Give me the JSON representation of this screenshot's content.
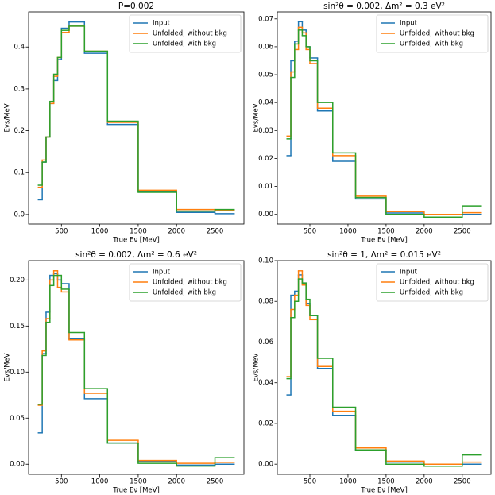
{
  "chart_data": [
    {
      "type": "histogram",
      "title": "P=0.002",
      "xlabel": "True Eν [MeV]",
      "ylabel": "Evs/MeV",
      "bins": [
        200,
        250,
        300,
        350,
        400,
        450,
        500,
        600,
        800,
        1100,
        1500,
        2000,
        2500,
        2750
      ],
      "series": [
        {
          "name": "Input",
          "color": "#1f77b4",
          "values": [
            0.035,
            0.125,
            0.185,
            0.265,
            0.32,
            0.37,
            0.445,
            0.46,
            0.385,
            0.215,
            0.055,
            0.005,
            0.002
          ]
        },
        {
          "name": "Unfolded, without bkg",
          "color": "#ff7f0e",
          "values": [
            0.065,
            0.13,
            0.185,
            0.265,
            0.33,
            0.375,
            0.435,
            0.45,
            0.39,
            0.22,
            0.058,
            0.012,
            0.01
          ]
        },
        {
          "name": "Unfolded, with bkg",
          "color": "#2ca02c",
          "values": [
            0.07,
            0.125,
            0.185,
            0.27,
            0.335,
            0.375,
            0.44,
            0.45,
            0.39,
            0.223,
            0.053,
            0.008,
            0.012
          ]
        }
      ],
      "xlim": [
        72.5,
        2877.5
      ],
      "xticks": [
        500,
        1000,
        1500,
        2000,
        2500
      ],
      "ylim": [
        -0.023,
        0.484
      ],
      "yticks": [
        {
          "value": 0,
          "label": "0.0"
        },
        {
          "value": 0.1,
          "label": "0.1"
        },
        {
          "value": 0.2,
          "label": "0.2"
        },
        {
          "value": 0.3,
          "label": "0.3"
        },
        {
          "value": 0.4,
          "label": "0.4"
        }
      ],
      "legend": "upper right"
    },
    {
      "type": "histogram",
      "title": "sin²θ = 0.002,  Δm² = 0.3 eV²",
      "xlabel": "True Eν [MeV]",
      "ylabel": "Evs/MeV",
      "bins": [
        200,
        250,
        300,
        350,
        400,
        450,
        500,
        600,
        800,
        1100,
        1500,
        2000,
        2500,
        2750
      ],
      "series": [
        {
          "name": "Input",
          "color": "#1f77b4",
          "values": [
            0.021,
            0.055,
            0.062,
            0.069,
            0.066,
            0.06,
            0.056,
            0.037,
            0.019,
            0.0055,
            0.0005,
            0.0,
            0.0
          ]
        },
        {
          "name": "Unfolded, without bkg",
          "color": "#ff7f0e",
          "values": [
            0.028,
            0.051,
            0.059,
            0.067,
            0.065,
            0.059,
            0.054,
            0.038,
            0.021,
            0.0065,
            0.001,
            0.0,
            0.0006
          ]
        },
        {
          "name": "Unfolded, with bkg",
          "color": "#2ca02c",
          "values": [
            0.027,
            0.049,
            0.061,
            0.066,
            0.064,
            0.06,
            0.055,
            0.04,
            0.022,
            0.006,
            0.0,
            -0.001,
            0.003
          ]
        }
      ],
      "xlim": [
        72.5,
        2877.5
      ],
      "xticks": [
        500,
        1000,
        1500,
        2000,
        2500
      ],
      "ylim": [
        -0.0035,
        0.0725
      ],
      "yticks": [
        {
          "value": 0,
          "label": "0.00"
        },
        {
          "value": 0.01,
          "label": "0.01"
        },
        {
          "value": 0.02,
          "label": "0.02"
        },
        {
          "value": 0.03,
          "label": "0.03"
        },
        {
          "value": 0.04,
          "label": "0.04"
        },
        {
          "value": 0.05,
          "label": "0.05"
        },
        {
          "value": 0.06,
          "label": "0.06"
        },
        {
          "value": 0.07,
          "label": "0.07"
        }
      ],
      "legend": "upper right"
    },
    {
      "type": "histogram",
      "title": "sin²θ = 0.002,  Δm² = 0.6 eV²",
      "xlabel": "True Eν [MeV]",
      "ylabel": "Evs/MeV",
      "bins": [
        200,
        250,
        300,
        350,
        400,
        450,
        500,
        600,
        800,
        1100,
        1500,
        2000,
        2500,
        2750
      ],
      "series": [
        {
          "name": "Input",
          "color": "#1f77b4",
          "values": [
            0.034,
            0.12,
            0.165,
            0.205,
            0.207,
            0.2,
            0.196,
            0.136,
            0.071,
            0.023,
            0.003,
            -0.001,
            0.0
          ]
        },
        {
          "name": "Unfolded, without bkg",
          "color": "#ff7f0e",
          "values": [
            0.064,
            0.123,
            0.158,
            0.2,
            0.21,
            0.192,
            0.187,
            0.135,
            0.077,
            0.026,
            0.004,
            0.001,
            0.002
          ]
        },
        {
          "name": "Unfolded, with bkg",
          "color": "#2ca02c",
          "values": [
            0.065,
            0.118,
            0.154,
            0.194,
            0.205,
            0.205,
            0.19,
            0.143,
            0.082,
            0.023,
            0.001,
            -0.002,
            0.007
          ]
        }
      ],
      "xlim": [
        72.5,
        2877.5
      ],
      "xticks": [
        500,
        1000,
        1500,
        2000,
        2500
      ],
      "ylim": [
        -0.011,
        0.221
      ],
      "yticks": [
        {
          "value": 0,
          "label": "0.00"
        },
        {
          "value": 0.05,
          "label": "0.05"
        },
        {
          "value": 0.1,
          "label": "0.10"
        },
        {
          "value": 0.15,
          "label": "0.15"
        },
        {
          "value": 0.2,
          "label": "0.20"
        }
      ],
      "legend": "upper right"
    },
    {
      "type": "histogram",
      "title": "sin²θ = 1,  Δm² = 0.015 eV²",
      "xlabel": "True Eν [MeV]",
      "ylabel": "Evs/MeV",
      "bins": [
        200,
        250,
        300,
        350,
        400,
        450,
        500,
        600,
        800,
        1100,
        1500,
        2000,
        2500,
        2750
      ],
      "series": [
        {
          "name": "Input",
          "color": "#1f77b4",
          "values": [
            0.034,
            0.083,
            0.085,
            0.093,
            0.089,
            0.079,
            0.073,
            0.047,
            0.024,
            0.007,
            0.001,
            0.0,
            0.0
          ]
        },
        {
          "name": "Unfolded, without bkg",
          "color": "#ff7f0e",
          "values": [
            0.043,
            0.076,
            0.083,
            0.095,
            0.088,
            0.078,
            0.071,
            0.048,
            0.026,
            0.008,
            0.0015,
            0.0,
            0.001
          ]
        },
        {
          "name": "Unfolded, with bkg",
          "color": "#2ca02c",
          "values": [
            0.042,
            0.072,
            0.08,
            0.091,
            0.089,
            0.081,
            0.073,
            0.052,
            0.028,
            0.007,
            0.0,
            -0.001,
            0.0045
          ]
        }
      ],
      "xlim": [
        72.5,
        2877.5
      ],
      "xticks": [
        500,
        1000,
        1500,
        2000,
        2500
      ],
      "ylim": [
        -0.005,
        0.1
      ],
      "yticks": [
        {
          "value": 0,
          "label": "0.00"
        },
        {
          "value": 0.02,
          "label": "0.02"
        },
        {
          "value": 0.04,
          "label": "0.04"
        },
        {
          "value": 0.06,
          "label": "0.06"
        },
        {
          "value": 0.08,
          "label": "0.08"
        },
        {
          "value": 0.1,
          "label": "0.10"
        }
      ],
      "legend": "upper right"
    }
  ]
}
